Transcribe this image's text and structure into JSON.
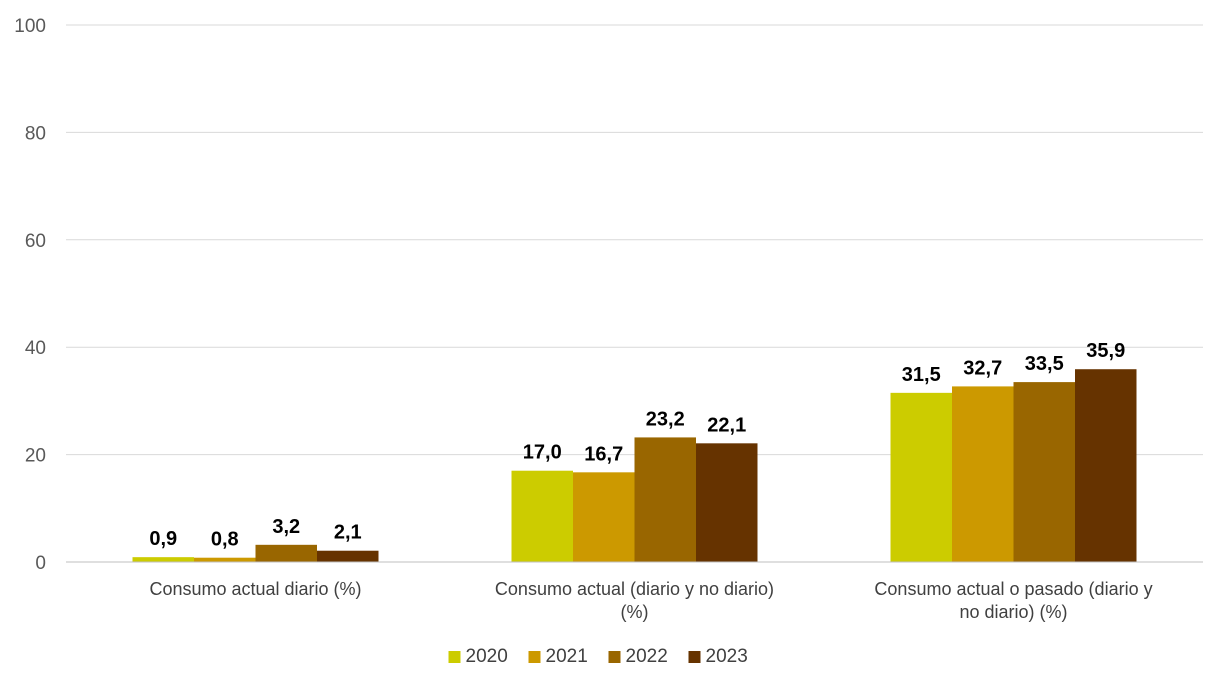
{
  "chart_data": {
    "type": "bar",
    "categories": [
      [
        "Consumo actual diario (%)"
      ],
      [
        "Consumo actual (diario y no diario)",
        "(%)"
      ],
      [
        "Consumo actual o pasado (diario y",
        "no diario) (%)"
      ]
    ],
    "series": [
      {
        "name": "2020",
        "color": "#cccc00",
        "values": [
          0.9,
          17.0,
          31.5
        ],
        "labels": [
          "0,9",
          "17,0",
          "31,5"
        ]
      },
      {
        "name": "2021",
        "color": "#cc9900",
        "values": [
          0.8,
          16.7,
          32.7
        ],
        "labels": [
          "0,8",
          "16,7",
          "32,7"
        ]
      },
      {
        "name": "2022",
        "color": "#996600",
        "values": [
          3.2,
          23.2,
          33.5
        ],
        "labels": [
          "3,2",
          "23,2",
          "33,5"
        ]
      },
      {
        "name": "2023",
        "color": "#663300",
        "values": [
          2.1,
          22.1,
          35.9
        ],
        "labels": [
          "2,1",
          "22,1",
          "35,9"
        ]
      }
    ],
    "ylim": [
      0,
      100
    ],
    "yticks": [
      0,
      20,
      40,
      60,
      80,
      100
    ],
    "ytick_labels": [
      "0",
      "20",
      "40",
      "60",
      "80",
      "100"
    ],
    "grid": true,
    "legend": "bottom-center",
    "title": "",
    "xlabel": "",
    "ylabel": ""
  }
}
